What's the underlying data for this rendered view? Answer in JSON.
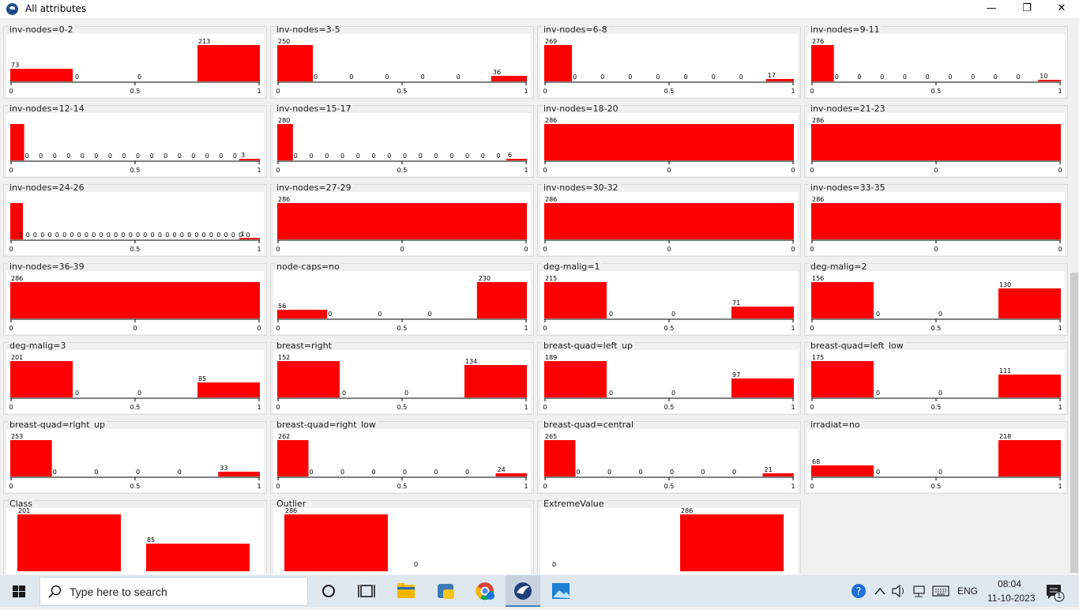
{
  "window": {
    "title": "All attributes",
    "minimize": "—",
    "restore": "❐",
    "close": "✕"
  },
  "bar_color": "#ff0000",
  "chart_data": [
    {
      "type": "bar",
      "title": "inv-nodes=0-2",
      "values": [
        73,
        0,
        0,
        213
      ],
      "ticks": [
        "0",
        "0.5",
        "1"
      ],
      "ymax": 213
    },
    {
      "type": "bar",
      "title": "inv-nodes=3-5",
      "values": [
        250,
        0,
        0,
        0,
        0,
        0,
        36
      ],
      "ticks": [
        "0",
        "0.5",
        "1"
      ],
      "ymax": 250
    },
    {
      "type": "bar",
      "title": "inv-nodes=6-8",
      "values": [
        269,
        0,
        0,
        0,
        0,
        0,
        0,
        0,
        17
      ],
      "ticks": [
        "0",
        "0.5",
        "1"
      ],
      "ymax": 269
    },
    {
      "type": "bar",
      "title": "inv-nodes=9-11",
      "values": [
        276,
        0,
        0,
        0,
        0,
        0,
        0,
        0,
        0,
        0,
        10
      ],
      "ticks": [
        "0",
        "0.5",
        "1"
      ],
      "ymax": 276
    },
    {
      "type": "bar",
      "title": "inv-nodes=12-14",
      "values": [
        283,
        0,
        0,
        0,
        0,
        0,
        0,
        0,
        0,
        0,
        0,
        0,
        0,
        0,
        0,
        0,
        0,
        3
      ],
      "ticks": [
        "0",
        "0.5",
        "1"
      ],
      "ymax": 283,
      "hide_first_label": true
    },
    {
      "type": "bar",
      "title": "inv-nodes=15-17",
      "values": [
        280,
        0,
        0,
        0,
        0,
        0,
        0,
        0,
        0,
        0,
        0,
        0,
        0,
        0,
        0,
        6
      ],
      "ticks": [
        "0",
        "0.5",
        "1"
      ],
      "ymax": 280
    },
    {
      "type": "bar",
      "title": "inv-nodes=18-20",
      "values": [
        286
      ],
      "ticks": [
        "0",
        "0",
        "0"
      ],
      "ymax": 286
    },
    {
      "type": "bar",
      "title": "inv-nodes=21-23",
      "values": [
        286
      ],
      "ticks": [
        "0",
        "0",
        "0"
      ],
      "ymax": 286
    },
    {
      "type": "bar",
      "title": "inv-nodes=24-26",
      "values": [
        285,
        0,
        0,
        0,
        0,
        0,
        0,
        0,
        0,
        0,
        0,
        0,
        0,
        0,
        0,
        0,
        0,
        0,
        0,
        0,
        0,
        0,
        0,
        0,
        0,
        0,
        0,
        0,
        0,
        0,
        0,
        0,
        0,
        1
      ],
      "ticks": [
        "0",
        "0.5",
        "1"
      ],
      "ymax": 285,
      "hide_first_label": true
    },
    {
      "type": "bar",
      "title": "inv-nodes=27-29",
      "values": [
        286
      ],
      "ticks": [
        "0",
        "0",
        "0"
      ],
      "ymax": 286
    },
    {
      "type": "bar",
      "title": "inv-nodes=30-32",
      "values": [
        286
      ],
      "ticks": [
        "0",
        "0",
        "0"
      ],
      "ymax": 286
    },
    {
      "type": "bar",
      "title": "inv-nodes=33-35",
      "values": [
        286
      ],
      "ticks": [
        "0",
        "0",
        "0"
      ],
      "ymax": 286
    },
    {
      "type": "bar",
      "title": "inv-nodes=36-39",
      "values": [
        286
      ],
      "ticks": [
        "0",
        "0",
        "0"
      ],
      "ymax": 286
    },
    {
      "type": "bar",
      "title": "node-caps=no",
      "values": [
        56,
        0,
        0,
        0,
        230
      ],
      "ticks": [
        "0",
        "0.5",
        "1"
      ],
      "ymax": 230
    },
    {
      "type": "bar",
      "title": "deg-malig=1",
      "values": [
        215,
        0,
        0,
        71
      ],
      "ticks": [
        "0",
        "0.5",
        "1"
      ],
      "ymax": 215
    },
    {
      "type": "bar",
      "title": "deg-malig=2",
      "values": [
        156,
        0,
        0,
        130
      ],
      "ticks": [
        "0",
        "0.5",
        "1"
      ],
      "ymax": 156
    },
    {
      "type": "bar",
      "title": "deg-malig=3",
      "values": [
        201,
        0,
        0,
        85
      ],
      "ticks": [
        "0",
        "0.5",
        "1"
      ],
      "ymax": 201
    },
    {
      "type": "bar",
      "title": "breast=right",
      "values": [
        152,
        0,
        0,
        134
      ],
      "ticks": [
        "0",
        "0.5",
        "1"
      ],
      "ymax": 152
    },
    {
      "type": "bar",
      "title": "breast-quad=left_up",
      "values": [
        189,
        0,
        0,
        97
      ],
      "ticks": [
        "0",
        "0.5",
        "1"
      ],
      "ymax": 189
    },
    {
      "type": "bar",
      "title": "breast-quad=left_low",
      "values": [
        175,
        0,
        0,
        111
      ],
      "ticks": [
        "0",
        "0.5",
        "1"
      ],
      "ymax": 175
    },
    {
      "type": "bar",
      "title": "breast-quad=right_up",
      "values": [
        253,
        0,
        0,
        0,
        0,
        33
      ],
      "ticks": [
        "0",
        "0.5",
        "1"
      ],
      "ymax": 253
    },
    {
      "type": "bar",
      "title": "breast-quad=right_low",
      "values": [
        262,
        0,
        0,
        0,
        0,
        0,
        0,
        24
      ],
      "ticks": [
        "0",
        "0.5",
        "1"
      ],
      "ymax": 262
    },
    {
      "type": "bar",
      "title": "breast-quad=central",
      "values": [
        265,
        0,
        0,
        0,
        0,
        0,
        0,
        21
      ],
      "ticks": [
        "0",
        "0.5",
        "1"
      ],
      "ymax": 265
    },
    {
      "type": "bar",
      "title": "irradiat=no",
      "values": [
        68,
        0,
        0,
        218
      ],
      "ticks": [
        "0",
        "0.5",
        "1"
      ],
      "ymax": 218
    },
    {
      "type": "bar",
      "title": "Class",
      "values": [
        201,
        85
      ],
      "ticks": [],
      "ymax": 201,
      "cut": true
    },
    {
      "type": "bar",
      "title": "Outlier",
      "values": [
        286,
        0
      ],
      "ticks": [],
      "ymax": 286,
      "cut": true
    },
    {
      "type": "bar",
      "title": "ExtremeValue",
      "values": [
        0,
        286
      ],
      "ticks": [],
      "ymax": 286,
      "cut": true
    }
  ],
  "taskbar": {
    "search_placeholder": "Type here to search",
    "lang": "ENG",
    "time": "08:04",
    "date": "11-10-2023",
    "notif_count": "1"
  }
}
